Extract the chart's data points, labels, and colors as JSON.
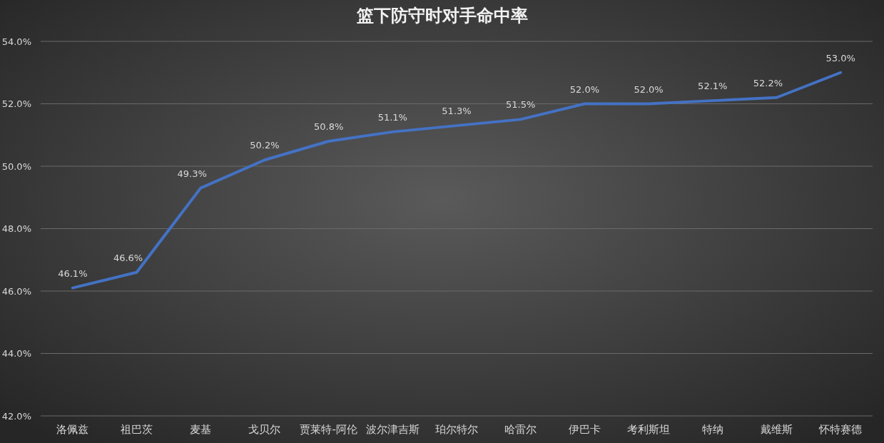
{
  "chart_data": {
    "type": "line",
    "title": "篮下防守时对手命中率",
    "categories": [
      "洛佩兹",
      "祖巴茨",
      "麦基",
      "戈贝尔",
      "贾莱特-阿伦",
      "波尔津吉斯",
      "珀尔特尔",
      "哈雷尔",
      "伊巴卡",
      "考利斯坦",
      "特纳",
      "戴维斯",
      "怀特赛德"
    ],
    "series": [
      {
        "color": "#4472c4",
        "values": [
          46.1,
          46.6,
          49.3,
          50.2,
          50.8,
          51.1,
          51.3,
          51.5,
          52.0,
          52.0,
          52.1,
          52.2,
          53.0
        ],
        "value_labels": [
          "46.1%",
          "46.6%",
          "49.3%",
          "50.2%",
          "50.8%",
          "51.1%",
          "51.3%",
          "51.5%",
          "52.0%",
          "52.0%",
          "52.1%",
          "52.2%",
          "53.0%"
        ]
      }
    ],
    "ylim": [
      42,
      54
    ],
    "yticks": [
      {
        "value": 42,
        "label": "42.0%"
      },
      {
        "value": 44,
        "label": "44.0%"
      },
      {
        "value": 46,
        "label": "46.0%"
      },
      {
        "value": 48,
        "label": "48.0%"
      },
      {
        "value": 50,
        "label": "50.0%"
      },
      {
        "value": 52,
        "label": "52.0%"
      },
      {
        "value": 54,
        "label": "54.0%"
      }
    ],
    "grid": "y",
    "marker": "none",
    "line_style": "solid"
  }
}
